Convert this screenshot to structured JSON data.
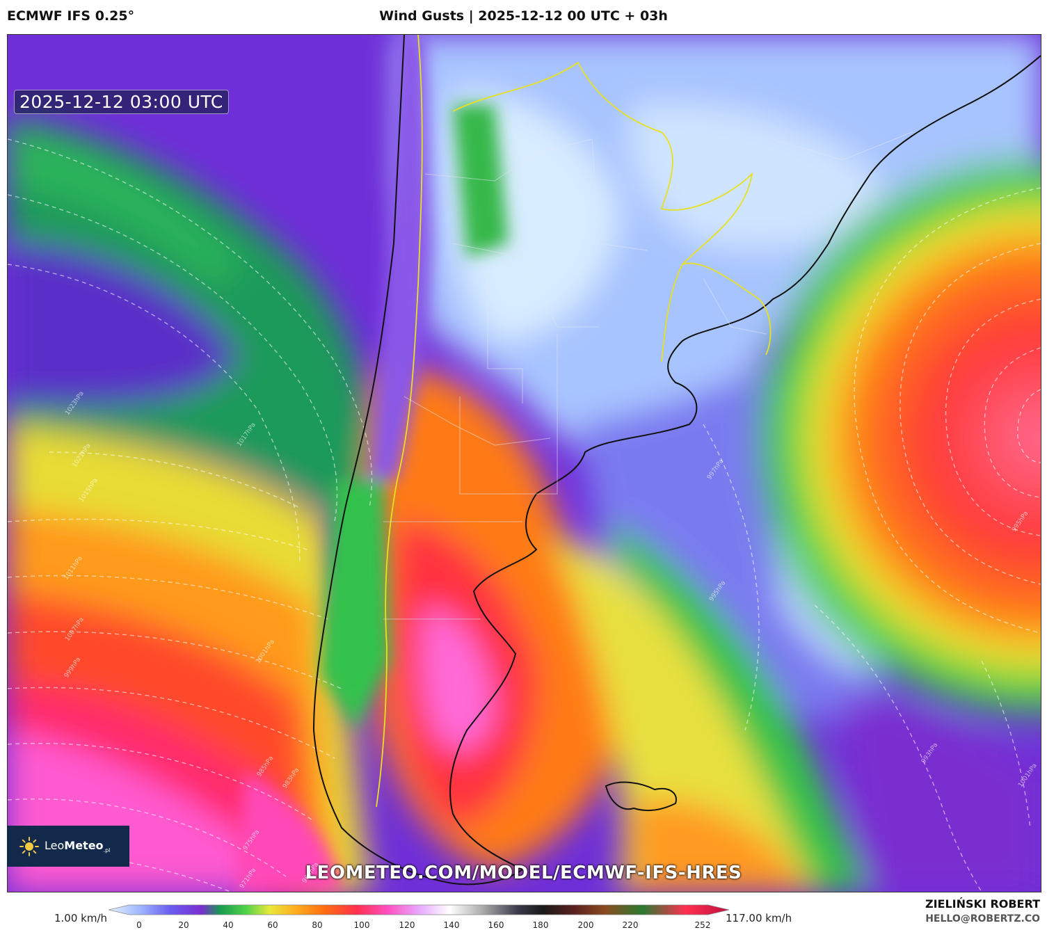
{
  "header": {
    "model": "ECMWF IFS 0.25°",
    "title": "Wind Gusts | 2025-12-12 00 UTC + 03h"
  },
  "map": {
    "valid_time": "2025-12-12 03:00 UTC",
    "url": "LEOMETEO.COM/MODEL/ECMWF-IFS-HRES",
    "isobar_labels": [
      "1023hPa",
      "1021hPa",
      "1017hPa",
      "1015hPa",
      "1011hPa",
      "1007hPa",
      "1001hPa",
      "999hPa",
      "997hPa",
      "995hPa",
      "993hPa",
      "985hPa",
      "983hPa",
      "975hPa",
      "971hPa",
      "969hPa",
      "995hPa",
      "1001hPa"
    ]
  },
  "logo": {
    "name_light": "Leo",
    "name_bold": "Meteo",
    "suffix": ".pl"
  },
  "colorbar": {
    "min_label": "1.00 km/h",
    "max_label": "117.00 km/h",
    "ticks": [
      "0",
      "20",
      "40",
      "60",
      "80",
      "100",
      "120",
      "140",
      "160",
      "180",
      "200",
      "220",
      "252"
    ],
    "colors": [
      "#cfe6ff",
      "#9fb8ff",
      "#6a5cf0",
      "#7a2fd0",
      "#1a9a50",
      "#4cd24a",
      "#e8e83a",
      "#ffb020",
      "#ff6a10",
      "#ff3050",
      "#ff50c0",
      "#ffffff",
      "#b0b0b0",
      "#3a3a4a",
      "#5a2020",
      "#2a7a30",
      "#ff3050",
      "#c01040"
    ]
  },
  "credits": {
    "author": "ZIELIŃSKI ROBERT",
    "email": "HELLO@ROBERTZ.CO"
  }
}
